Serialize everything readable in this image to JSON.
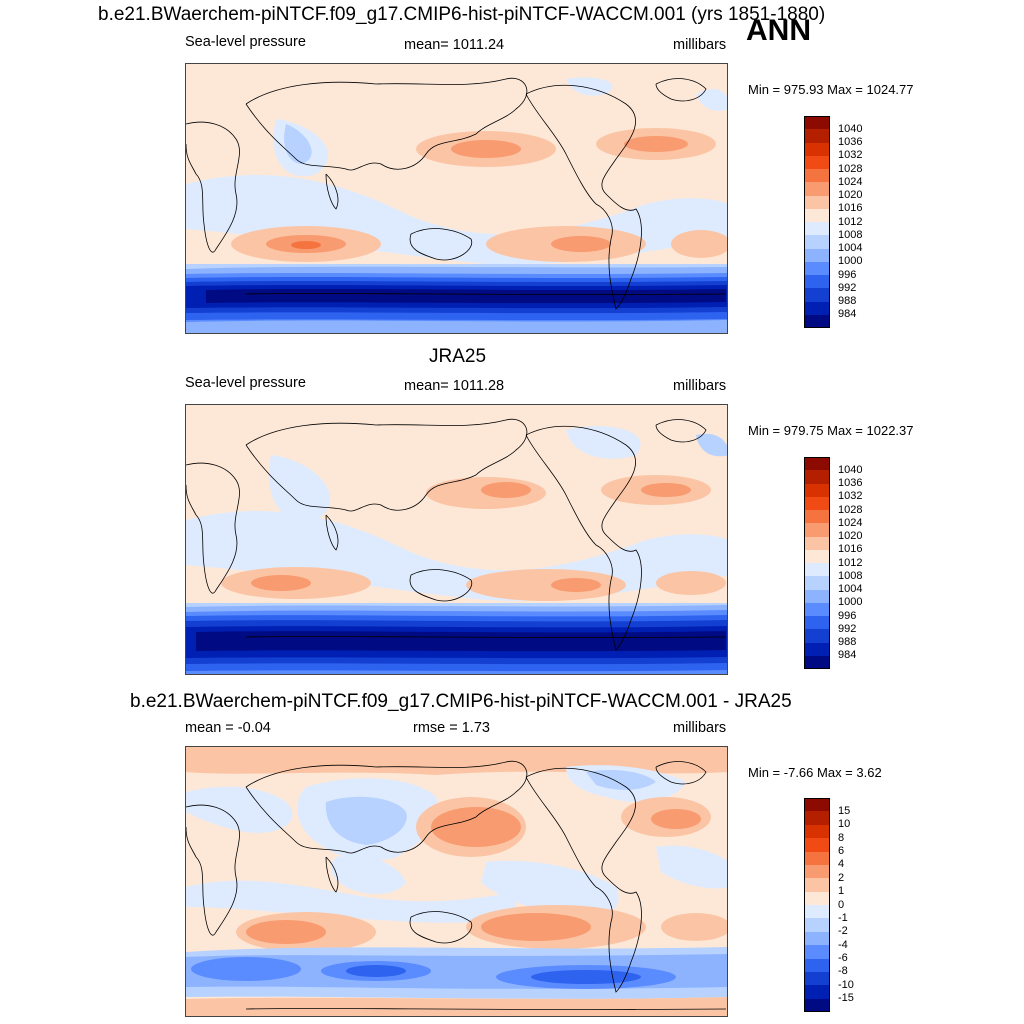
{
  "top_title": "b.e21.BWaerchem-piNTCF.f09_g17.CMIP6-hist-piNTCF-WACCM.001 (yrs 1851-1880)",
  "season": "ANN",
  "panels": [
    {
      "id": "model",
      "header": "",
      "left": "Sea-level pressure",
      "center": "mean= 1011.24",
      "right": "millibars",
      "minmax": "Min = 975.93 Max = 1024.77",
      "levels": [
        "1040",
        "1036",
        "1032",
        "1028",
        "1024",
        "1020",
        "1016",
        "1012",
        "1008",
        "1004",
        "1000",
        "996",
        "992",
        "988",
        "984"
      ]
    },
    {
      "id": "obs",
      "header": "JRA25",
      "left": "Sea-level pressure",
      "center": "mean= 1011.28",
      "right": "millibars",
      "minmax": "Min = 979.75 Max = 1022.37",
      "levels": [
        "1040",
        "1036",
        "1032",
        "1028",
        "1024",
        "1020",
        "1016",
        "1012",
        "1008",
        "1004",
        "1000",
        "996",
        "992",
        "988",
        "984"
      ]
    },
    {
      "id": "diff",
      "header": "b.e21.BWaerchem-piNTCF.f09_g17.CMIP6-hist-piNTCF-WACCM.001 - JRA25",
      "left": "mean =  -0.04",
      "center": "rmse =   1.73",
      "right": "millibars",
      "minmax": "Min =  -7.66 Max =   3.62",
      "levels": [
        "15",
        "10",
        "8",
        "6",
        "4",
        "2",
        "1",
        "0",
        "-1",
        "-2",
        "-4",
        "-6",
        "-8",
        "-10",
        "-15"
      ]
    }
  ],
  "colors": {
    "cbar": [
      "#8c0a00",
      "#b41f00",
      "#d83200",
      "#f04b14",
      "#f5733f",
      "#f89b70",
      "#fbc5a5",
      "#fde8d8",
      "#deebff",
      "#b7d2ff",
      "#8db3ff",
      "#5a8cff",
      "#2e63f0",
      "#1440d2",
      "#0020b4",
      "#000a82"
    ],
    "map_bg": "#deebff",
    "coast": "#000000"
  }
}
